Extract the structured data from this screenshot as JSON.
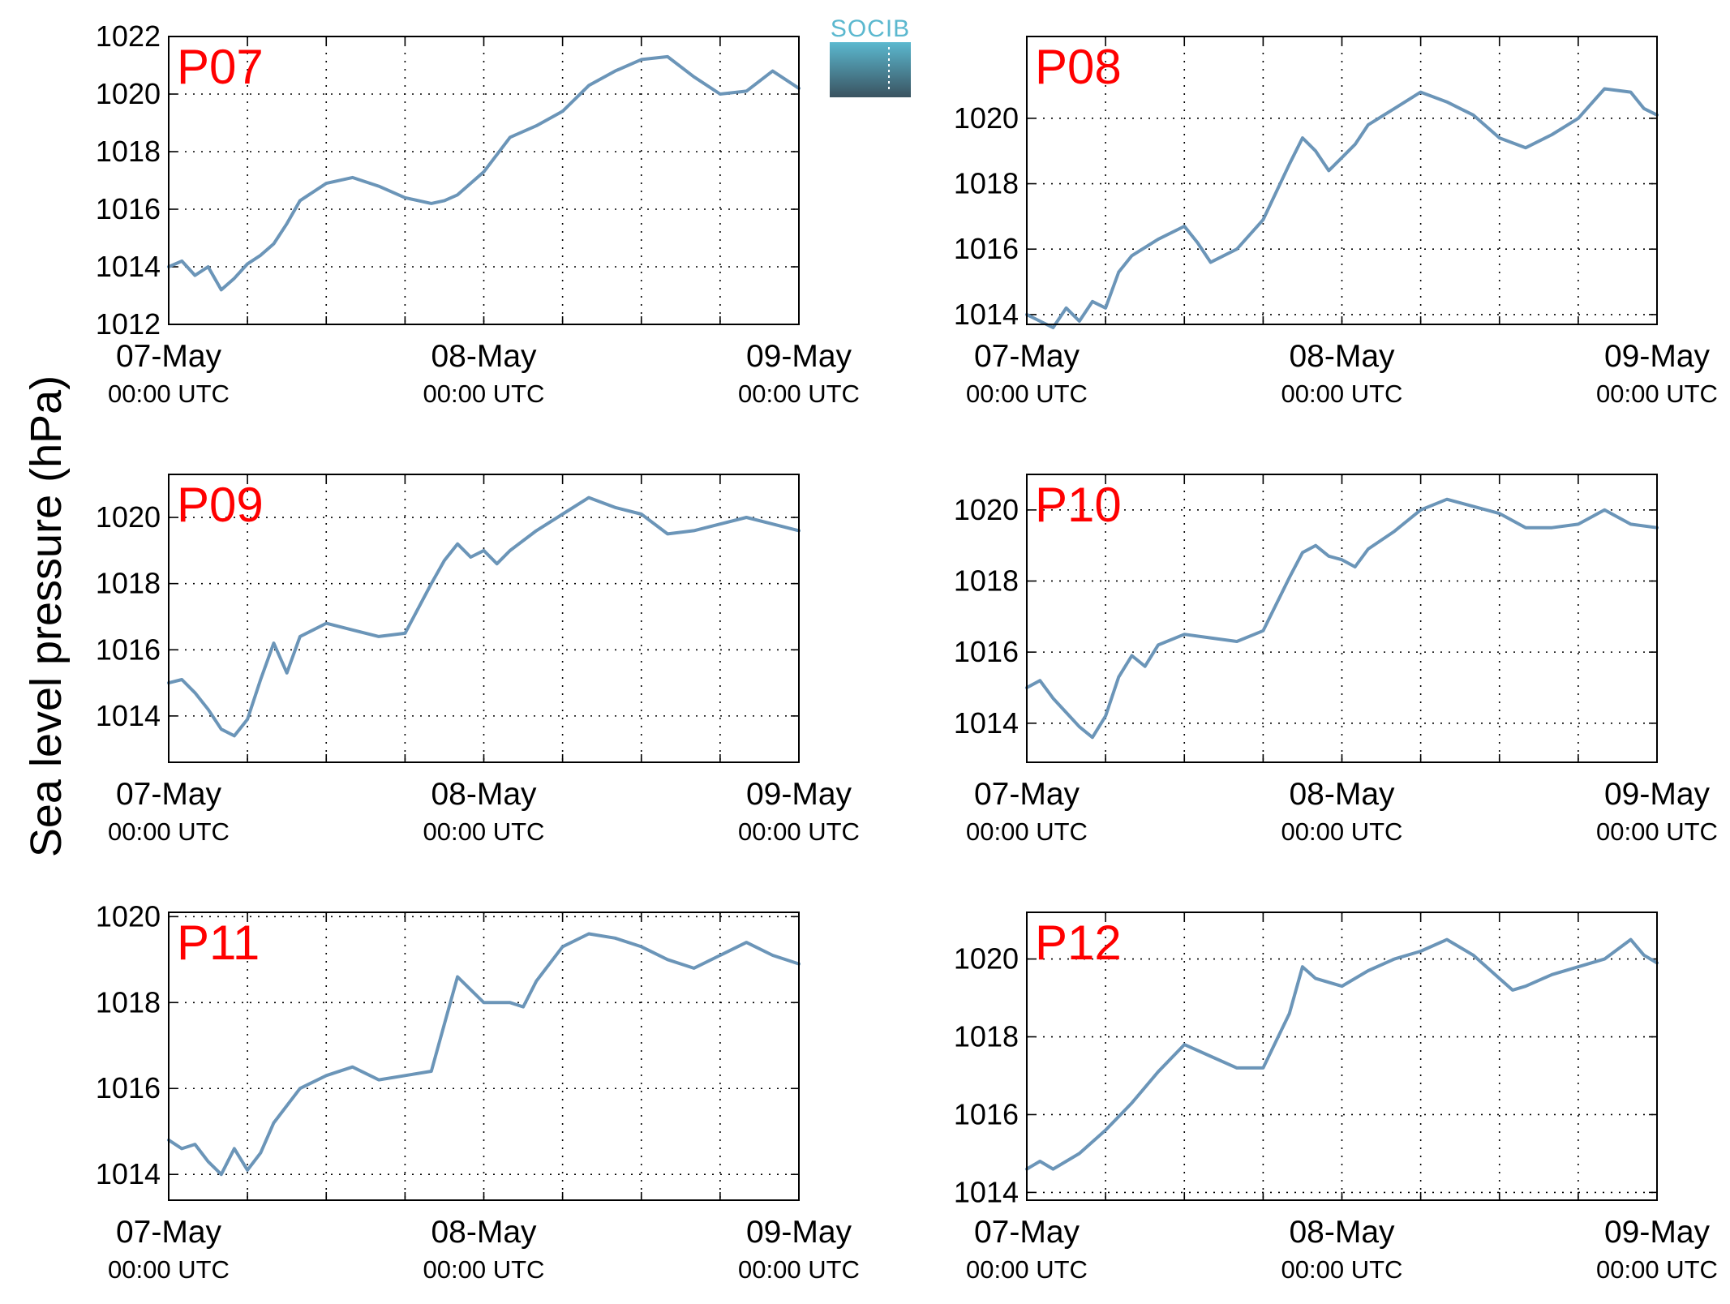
{
  "figure": {
    "ylabel": "Sea level pressure (hPa)",
    "logo_text": "SOCIB",
    "panel_label_color": "#ff0000",
    "line_color": "#6b95b8",
    "logo_top_color": "#5bb8cf",
    "logo_bottom_color": "#3a5360"
  },
  "chart_data": [
    {
      "type": "line",
      "title": "",
      "label": "P07",
      "xlabel": "",
      "ylabel": "Sea level pressure (hPa)",
      "xlim": [
        "07-May 00:00 UTC",
        "09-May 00:00 UTC"
      ],
      "x_ticks": [
        {
          "date": "07-May",
          "time": "00:00 UTC"
        },
        {
          "date": "08-May",
          "time": "00:00 UTC"
        },
        {
          "date": "09-May",
          "time": "00:00 UTC"
        }
      ],
      "ylim": [
        1012,
        1022
      ],
      "y_ticks": [
        "1012",
        "1014",
        "1016",
        "1018",
        "1020",
        "1022"
      ],
      "grid": true,
      "series": [
        {
          "x_hours": [
            0,
            1,
            2,
            3,
            4,
            5,
            6,
            7,
            8,
            9,
            10,
            12,
            14,
            16,
            18,
            20,
            21,
            22,
            24,
            26,
            28,
            30,
            32,
            34,
            36,
            38,
            40,
            42,
            44,
            46,
            48
          ],
          "values": [
            1014.0,
            1014.2,
            1013.7,
            1014.0,
            1013.2,
            1013.6,
            1014.1,
            1014.4,
            1014.8,
            1015.5,
            1016.3,
            1016.9,
            1017.1,
            1016.8,
            1016.4,
            1016.2,
            1016.3,
            1016.5,
            1017.3,
            1018.5,
            1018.9,
            1019.4,
            1020.3,
            1020.8,
            1021.2,
            1021.3,
            1020.6,
            1020.0,
            1020.1,
            1020.8,
            1020.2
          ]
        }
      ]
    },
    {
      "type": "line",
      "title": "",
      "label": "P08",
      "xlabel": "",
      "ylabel": "Sea level pressure (hPa)",
      "xlim": [
        "07-May 00:00 UTC",
        "09-May 00:00 UTC"
      ],
      "x_ticks": [
        {
          "date": "07-May",
          "time": "00:00 UTC"
        },
        {
          "date": "08-May",
          "time": "00:00 UTC"
        },
        {
          "date": "09-May",
          "time": "00:00 UTC"
        }
      ],
      "ylim": [
        1013.7,
        1022.5
      ],
      "y_ticks": [
        "1014",
        "1016",
        "1018",
        "1020"
      ],
      "grid": true,
      "series": [
        {
          "x_hours": [
            0,
            1,
            2,
            3,
            4,
            5,
            6,
            7,
            8,
            10,
            12,
            13,
            14,
            16,
            18,
            20,
            21,
            22,
            23,
            24,
            25,
            26,
            28,
            30,
            32,
            33,
            34,
            36,
            38,
            40,
            42,
            44,
            46,
            47,
            48
          ],
          "values": [
            1014.0,
            1013.8,
            1013.6,
            1014.2,
            1013.8,
            1014.4,
            1014.2,
            1015.3,
            1015.8,
            1016.3,
            1016.7,
            1016.2,
            1015.6,
            1016.0,
            1016.9,
            1018.6,
            1019.4,
            1019.0,
            1018.4,
            1018.8,
            1019.2,
            1019.8,
            1020.3,
            1020.8,
            1020.5,
            1020.3,
            1020.1,
            1019.4,
            1019.1,
            1019.5,
            1020.0,
            1020.9,
            1020.8,
            1020.3,
            1020.1
          ]
        }
      ]
    },
    {
      "type": "line",
      "title": "",
      "label": "P09",
      "xlabel": "",
      "ylabel": "Sea level pressure (hPa)",
      "xlim": [
        "07-May 00:00 UTC",
        "09-May 00:00 UTC"
      ],
      "x_ticks": [
        {
          "date": "07-May",
          "time": "00:00 UTC"
        },
        {
          "date": "08-May",
          "time": "00:00 UTC"
        },
        {
          "date": "09-May",
          "time": "00:00 UTC"
        }
      ],
      "ylim": [
        1012.6,
        1021.3
      ],
      "y_ticks": [
        "1014",
        "1016",
        "1018",
        "1020"
      ],
      "grid": true,
      "series": [
        {
          "x_hours": [
            0,
            1,
            2,
            3,
            4,
            5,
            6,
            7,
            8,
            9,
            10,
            11,
            12,
            14,
            16,
            18,
            20,
            21,
            22,
            23,
            24,
            25,
            26,
            27,
            28,
            30,
            32,
            34,
            36,
            38,
            40,
            42,
            44,
            46,
            48
          ],
          "values": [
            1015.0,
            1015.1,
            1014.7,
            1014.2,
            1013.6,
            1013.4,
            1013.9,
            1015.1,
            1016.2,
            1015.3,
            1016.4,
            1016.6,
            1016.8,
            1016.6,
            1016.4,
            1016.5,
            1018.0,
            1018.7,
            1019.2,
            1018.8,
            1019.0,
            1018.6,
            1019.0,
            1019.3,
            1019.6,
            1020.1,
            1020.6,
            1020.3,
            1020.1,
            1019.5,
            1019.6,
            1019.8,
            1020.0,
            1019.8,
            1019.6
          ]
        }
      ]
    },
    {
      "type": "line",
      "title": "",
      "label": "P10",
      "xlabel": "",
      "ylabel": "Sea level pressure (hPa)",
      "xlim": [
        "07-May 00:00 UTC",
        "09-May 00:00 UTC"
      ],
      "x_ticks": [
        {
          "date": "07-May",
          "time": "00:00 UTC"
        },
        {
          "date": "08-May",
          "time": "00:00 UTC"
        },
        {
          "date": "09-May",
          "time": "00:00 UTC"
        }
      ],
      "ylim": [
        1012.9,
        1021.0
      ],
      "y_ticks": [
        "1014",
        "1016",
        "1018",
        "1020"
      ],
      "grid": true,
      "series": [
        {
          "x_hours": [
            0,
            1,
            2,
            3,
            4,
            5,
            6,
            7,
            8,
            9,
            10,
            12,
            14,
            16,
            18,
            20,
            21,
            22,
            23,
            24,
            25,
            26,
            28,
            30,
            32,
            34,
            36,
            38,
            40,
            42,
            44,
            46,
            48
          ],
          "values": [
            1015.0,
            1015.2,
            1014.7,
            1014.3,
            1013.9,
            1013.6,
            1014.2,
            1015.3,
            1015.9,
            1015.6,
            1016.2,
            1016.5,
            1016.4,
            1016.3,
            1016.6,
            1018.1,
            1018.8,
            1019.0,
            1018.7,
            1018.6,
            1018.4,
            1018.9,
            1019.4,
            1020.0,
            1020.3,
            1020.1,
            1019.9,
            1019.5,
            1019.5,
            1019.6,
            1020.0,
            1019.6,
            1019.5
          ]
        }
      ]
    },
    {
      "type": "line",
      "title": "",
      "label": "P11",
      "xlabel": "",
      "ylabel": "Sea level pressure (hPa)",
      "xlim": [
        "07-May 00:00 UTC",
        "09-May 00:00 UTC"
      ],
      "x_ticks": [
        {
          "date": "07-May",
          "time": "00:00 UTC"
        },
        {
          "date": "08-May",
          "time": "00:00 UTC"
        },
        {
          "date": "09-May",
          "time": "00:00 UTC"
        }
      ],
      "ylim": [
        1013.4,
        1020.1
      ],
      "y_ticks": [
        "1014",
        "1016",
        "1018",
        "1020"
      ],
      "grid": true,
      "series": [
        {
          "x_hours": [
            0,
            1,
            2,
            3,
            4,
            5,
            6,
            7,
            8,
            10,
            12,
            14,
            16,
            18,
            20,
            21,
            22,
            23,
            24,
            26,
            27,
            28,
            30,
            32,
            34,
            36,
            38,
            40,
            42,
            44,
            46,
            48
          ],
          "values": [
            1014.8,
            1014.6,
            1014.7,
            1014.3,
            1014.0,
            1014.6,
            1014.1,
            1014.5,
            1015.2,
            1016.0,
            1016.3,
            1016.5,
            1016.2,
            1016.3,
            1016.4,
            1017.5,
            1018.6,
            1018.3,
            1018.0,
            1018.0,
            1017.9,
            1018.5,
            1019.3,
            1019.6,
            1019.5,
            1019.3,
            1019.0,
            1018.8,
            1019.1,
            1019.4,
            1019.1,
            1018.9
          ]
        }
      ]
    },
    {
      "type": "line",
      "title": "",
      "label": "P12",
      "xlabel": "",
      "ylabel": "Sea level pressure (hPa)",
      "xlim": [
        "07-May 00:00 UTC",
        "09-May 00:00 UTC"
      ],
      "x_ticks": [
        {
          "date": "07-May",
          "time": "00:00 UTC"
        },
        {
          "date": "08-May",
          "time": "00:00 UTC"
        },
        {
          "date": "09-May",
          "time": "00:00 UTC"
        }
      ],
      "ylim": [
        1013.8,
        1021.2
      ],
      "y_ticks": [
        "1014",
        "1016",
        "1018",
        "1020"
      ],
      "grid": true,
      "series": [
        {
          "x_hours": [
            0,
            1,
            2,
            4,
            6,
            8,
            10,
            12,
            14,
            16,
            18,
            20,
            21,
            22,
            24,
            26,
            28,
            30,
            32,
            34,
            36,
            37,
            38,
            40,
            42,
            44,
            46,
            47,
            48
          ],
          "values": [
            1014.6,
            1014.8,
            1014.6,
            1015.0,
            1015.6,
            1016.3,
            1017.1,
            1017.8,
            1017.5,
            1017.2,
            1017.2,
            1018.6,
            1019.8,
            1019.5,
            1019.3,
            1019.7,
            1020.0,
            1020.2,
            1020.5,
            1020.1,
            1019.5,
            1019.2,
            1019.3,
            1019.6,
            1019.8,
            1020.0,
            1020.5,
            1020.1,
            1019.9
          ]
        }
      ]
    }
  ]
}
